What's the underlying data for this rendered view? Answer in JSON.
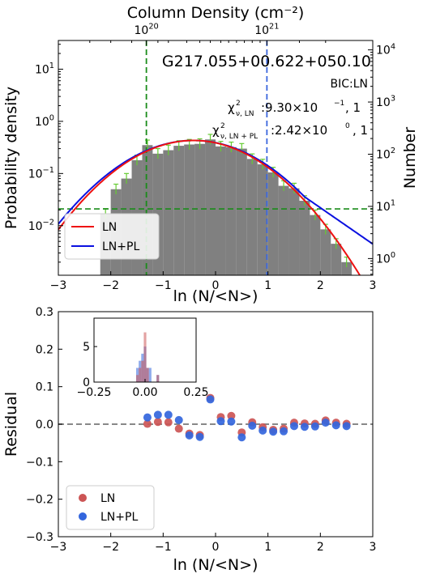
{
  "chart_data": [
    {
      "type": "bar",
      "title": "G217.055+00.622+050.10",
      "top_axis_label": "Column Density (cm⁻²)",
      "top_ticks": [
        {
          "label": "10",
          "exp": "20",
          "x": -1.32
        },
        {
          "label": "10",
          "exp": "21",
          "x": 0.98
        }
      ],
      "xlabel": "ln (N/<N>)",
      "ylabel": "Probability density",
      "y2label": "Number",
      "xlim": [
        -3,
        3
      ],
      "ylim_log": [
        -2.95,
        1.55
      ],
      "y2lim_log": [
        -0.32,
        4.18
      ],
      "x_ticks": [
        -3,
        -2,
        -1,
        0,
        1,
        2,
        3
      ],
      "x_tick_labels": [
        "−3",
        "−2",
        "−1",
        "0",
        "1",
        "2",
        "3"
      ],
      "y_ticks": [
        {
          "exp": -2,
          "label": "10",
          "sup": "−2"
        },
        {
          "exp": -1,
          "label": "10",
          "sup": "−1"
        },
        {
          "exp": 0,
          "label": "10",
          "sup": "0"
        },
        {
          "exp": 1,
          "label": "10",
          "sup": "1"
        }
      ],
      "y2_ticks": [
        {
          "exp": 0,
          "label": "10",
          "sup": "0"
        },
        {
          "exp": 1,
          "label": "10",
          "sup": "1"
        },
        {
          "exp": 2,
          "label": "10",
          "sup": "2"
        },
        {
          "exp": 3,
          "label": "10",
          "sup": "3"
        },
        {
          "exp": 4,
          "label": "10",
          "sup": "4"
        }
      ],
      "annotations": {
        "bic": "BIC:LN",
        "chi_ln_sub": "ν, LN",
        "chi_ln_value": ":9.30×10",
        "chi_ln_exp": "−1",
        "chi_ln_tail": ", 1",
        "chi_lnpl_sub": "ν, LN + PL",
        "chi_lnpl_value": ":2.42×10",
        "chi_lnpl_exp": "0",
        "chi_lnpl_tail": ", 1"
      },
      "histogram": {
        "bin_width": 0.2,
        "bin_centers": [
          -2.1,
          -1.9,
          -1.7,
          -1.5,
          -1.3,
          -1.1,
          -0.9,
          -0.7,
          -0.5,
          -0.3,
          -0.1,
          0.1,
          0.3,
          0.5,
          0.7,
          0.9,
          1.1,
          1.3,
          1.5,
          1.7,
          1.9,
          2.1,
          2.3,
          2.5
        ],
        "values": [
          0.017,
          0.05,
          0.08,
          0.18,
          0.35,
          0.24,
          0.28,
          0.34,
          0.36,
          0.37,
          0.45,
          0.33,
          0.32,
          0.3,
          0.19,
          0.15,
          0.105,
          0.058,
          0.052,
          0.03,
          0.016,
          0.0085,
          0.0045,
          0.002
        ],
        "color": "#808080",
        "errorbar_color": "#66cc33"
      },
      "series": [
        {
          "name": "LN",
          "color": "#ee1111",
          "mu": -0.42,
          "sigma": 0.92,
          "amp": 0.43
        },
        {
          "name": "LN+PL",
          "color": "#0a10e0",
          "mu": -0.42,
          "sigma": 0.95,
          "amp": 0.43,
          "pl_start": 1.7,
          "pl_slope": -1.6
        }
      ],
      "vlines": [
        {
          "x": -1.32,
          "color": "#1a8c1a",
          "style": "dashed"
        },
        {
          "x": 0.98,
          "color": "#3a66dd",
          "style": "dashed"
        }
      ],
      "hline": {
        "y": 0.021,
        "color": "#1a8c1a",
        "style": "dashed"
      },
      "legend": {
        "position": "lower-left",
        "items": [
          "LN",
          "LN+PL"
        ]
      }
    },
    {
      "type": "scatter",
      "xlabel": "ln (N/<N>)",
      "ylabel": "Residual",
      "xlim": [
        -3,
        3
      ],
      "ylim": [
        -0.3,
        0.3
      ],
      "x_ticks": [
        -3,
        -2,
        -1,
        0,
        1,
        2,
        3
      ],
      "x_tick_labels": [
        "−3",
        "−2",
        "−1",
        "0",
        "1",
        "2",
        "3"
      ],
      "y_ticks": [
        -0.3,
        -0.2,
        -0.1,
        0.0,
        0.1,
        0.2,
        0.3
      ],
      "y_tick_labels": [
        "−0.3",
        "−0.2",
        "−0.1",
        "0.0",
        "0.1",
        "0.2",
        "0.3"
      ],
      "x": [
        -1.3,
        -1.1,
        -0.9,
        -0.7,
        -0.5,
        -0.3,
        -0.1,
        0.1,
        0.3,
        0.5,
        0.7,
        0.9,
        1.1,
        1.3,
        1.5,
        1.7,
        1.9,
        2.1,
        2.3,
        2.5
      ],
      "series": [
        {
          "name": "LN",
          "color": "#cc5555",
          "values": [
            0.001,
            0.006,
            0.005,
            -0.012,
            -0.025,
            -0.029,
            0.07,
            0.019,
            0.022,
            -0.022,
            0.005,
            -0.008,
            -0.015,
            -0.012,
            0.004,
            0.002,
            0.001,
            0.01,
            0.004,
            0.001
          ]
        },
        {
          "name": "LN+PL",
          "color": "#3366dd",
          "values": [
            0.018,
            0.025,
            0.025,
            0.011,
            -0.03,
            -0.034,
            0.066,
            0.008,
            0.007,
            -0.035,
            -0.004,
            -0.017,
            -0.02,
            -0.019,
            -0.005,
            -0.007,
            -0.006,
            0.004,
            -0.003,
            -0.005
          ]
        }
      ],
      "zero_line": {
        "y": 0,
        "color": "#888888",
        "style": "dashed"
      },
      "legend": {
        "position": "lower-left",
        "items": [
          "LN",
          "LN+PL"
        ]
      },
      "inset": {
        "type": "histogram",
        "xlim": [
          -0.25,
          0.25
        ],
        "ylim": [
          0,
          9
        ],
        "x_ticks": [
          -0.25,
          0.0,
          0.25
        ],
        "x_tick_labels": [
          "−0.25",
          "0.00",
          "0.25"
        ],
        "y_ticks": [
          0,
          5
        ],
        "y_tick_labels": [
          "0",
          "5"
        ],
        "bin_width": 0.0125,
        "series": [
          {
            "name": "LN",
            "color": "#cc5555",
            "bins": [
              {
                "x": -0.0375,
                "n": 1
              },
              {
                "x": -0.025,
                "n": 2
              },
              {
                "x": -0.0125,
                "n": 3
              },
              {
                "x": 0.0,
                "n": 7
              },
              {
                "x": 0.0125,
                "n": 2
              },
              {
                "x": 0.0625,
                "n": 1
              }
            ]
          },
          {
            "name": "LN+PL",
            "color": "#3366dd",
            "bins": [
              {
                "x": -0.0375,
                "n": 2
              },
              {
                "x": -0.025,
                "n": 3
              },
              {
                "x": -0.0125,
                "n": 4
              },
              {
                "x": 0.0,
                "n": 5
              },
              {
                "x": 0.0125,
                "n": 2
              },
              {
                "x": 0.025,
                "n": 2
              },
              {
                "x": 0.0625,
                "n": 1
              }
            ]
          }
        ]
      }
    }
  ]
}
